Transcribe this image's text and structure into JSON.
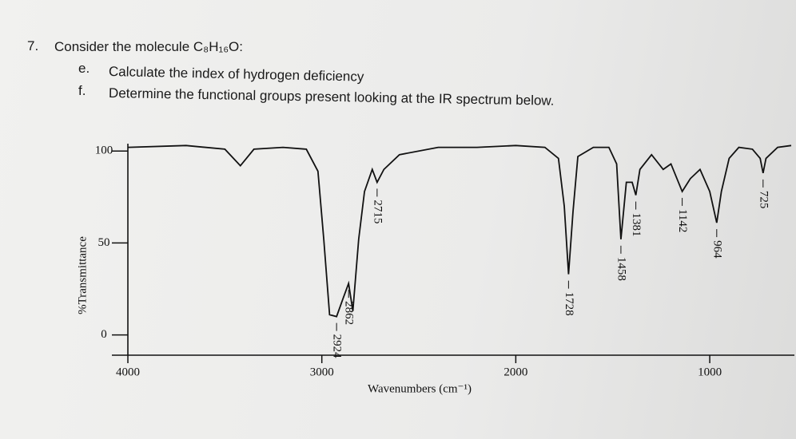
{
  "question": {
    "number": "7.",
    "text": "Consider the molecule C₈H₁₆O:",
    "parts": [
      {
        "letter": "e.",
        "text": "Calculate the index of hydrogen deficiency"
      },
      {
        "letter": "f.",
        "text": "Determine the functional groups present looking at the IR spectrum below."
      }
    ]
  },
  "chart_data": {
    "type": "line",
    "x_label": "Wavenumbers (cm⁻¹)",
    "y_label": "%Transmittance",
    "x": [
      4000,
      3700,
      3500,
      3420,
      3350,
      3200,
      3080,
      3020,
      2990,
      2960,
      2924,
      2890,
      2862,
      2840,
      2810,
      2780,
      2740,
      2715,
      2680,
      2600,
      2400,
      2200,
      2000,
      1850,
      1780,
      1750,
      1728,
      1705,
      1680,
      1600,
      1520,
      1480,
      1458,
      1430,
      1400,
      1381,
      1360,
      1300,
      1240,
      1200,
      1142,
      1100,
      1050,
      1000,
      964,
      940,
      900,
      850,
      780,
      740,
      725,
      710,
      650,
      580
    ],
    "series": [
      {
        "name": "IR spectrum",
        "color": "#111111",
        "values": [
          102,
          103,
          101,
          92,
          101,
          102,
          101,
          89,
          52,
          11,
          10,
          20,
          28,
          13,
          52,
          78,
          90,
          83,
          90,
          98,
          102,
          102,
          103,
          102,
          96,
          70,
          33,
          67,
          97,
          102,
          102,
          93,
          52,
          83,
          83,
          76,
          90,
          98,
          90,
          93,
          78,
          85,
          90,
          78,
          61,
          78,
          96,
          102,
          101,
          96,
          88,
          96,
          102,
          103
        ]
      }
    ],
    "peak_labels": [
      2715,
      2862,
      2924,
      1728,
      1458,
      1381,
      1142,
      964,
      725
    ],
    "xlim": [
      4000,
      580
    ],
    "xticks": [
      4000,
      3000,
      2000,
      1000
    ],
    "ylim": [
      -11,
      104
    ],
    "yticks": [
      0,
      50,
      100
    ]
  }
}
